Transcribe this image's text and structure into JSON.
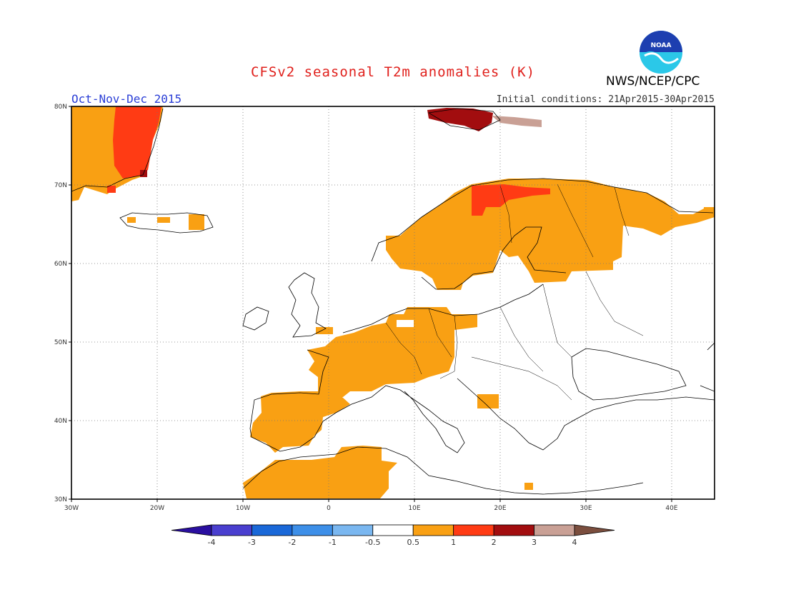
{
  "header": {
    "title": "CFSv2 seasonal T2m anomalies (K)",
    "period": "Oct-Nov-Dec 2015",
    "initial_conditions": "Initial conditions: 21Apr2015-30Apr2015",
    "agency": "NWS/NCEP/CPC",
    "logo_text": "NOAA"
  },
  "map": {
    "region": "Europe",
    "lon_range": [
      -30,
      45
    ],
    "lat_range": [
      30,
      80
    ],
    "lon_ticks": [
      "30W",
      "20W",
      "10W",
      "0",
      "10E",
      "20E",
      "30E",
      "40E"
    ],
    "lat_ticks": [
      "30N",
      "40N",
      "50N",
      "60N",
      "70N",
      "80N"
    ],
    "gridlines": "dotted"
  },
  "colorbar": {
    "unit": "K",
    "tick_labels": [
      "-4",
      "-3",
      "-2",
      "-1",
      "-0.5",
      "0.5",
      "1",
      "2",
      "3",
      "4"
    ],
    "colors": [
      "#2a0fa0",
      "#4a3fcf",
      "#1a68d8",
      "#3d8fe8",
      "#7ab7f0",
      "#ffffff",
      "#f9a013",
      "#ff3b14",
      "#a20d0f",
      "#c9a095",
      "#7b4e3e"
    ]
  },
  "chart_data": {
    "type": "heatmap",
    "title": "CFSv2 seasonal T2m anomalies (K)",
    "bins": [
      {
        "range": "0.5 to 1",
        "color": "#f9a013"
      },
      {
        "range": "1 to 2",
        "color": "#ff3b14"
      },
      {
        "range": "2 to 3",
        "color": "#a20d0f"
      },
      {
        "range": "3 to 4",
        "color": "#c9a095"
      }
    ],
    "regions": [
      {
        "area": "Greenland east coast",
        "anomaly_range": "0.5 to 2"
      },
      {
        "area": "Svalbard",
        "anomaly_range": "2 to 4"
      },
      {
        "area": "Iceland (patches)",
        "anomaly_range": "0.5 to 1"
      },
      {
        "area": "Norway",
        "anomaly_range": "0.5 to 1"
      },
      {
        "area": "Sweden",
        "anomaly_range": "0.5 to 1"
      },
      {
        "area": "Northern Scandinavia / Lapland",
        "anomaly_range": "1 to 2"
      },
      {
        "area": "Finland",
        "anomaly_range": "0.5 to 1"
      },
      {
        "area": "Northwest Russia / Kola",
        "anomaly_range": "0.5 to 1"
      },
      {
        "area": "France",
        "anomaly_range": "0.5 to 1"
      },
      {
        "area": "Benelux / Germany",
        "anomaly_range": "0.5 to 1"
      },
      {
        "area": "Alps",
        "anomaly_range": "0.5 to 1"
      },
      {
        "area": "Iberian Peninsula",
        "anomaly_range": "0.5 to 1"
      },
      {
        "area": "Northwest Africa",
        "anomaly_range": "0.5 to 1"
      },
      {
        "area": "Rest of Europe",
        "anomaly_range": "-0.5 to 0.5"
      }
    ]
  }
}
